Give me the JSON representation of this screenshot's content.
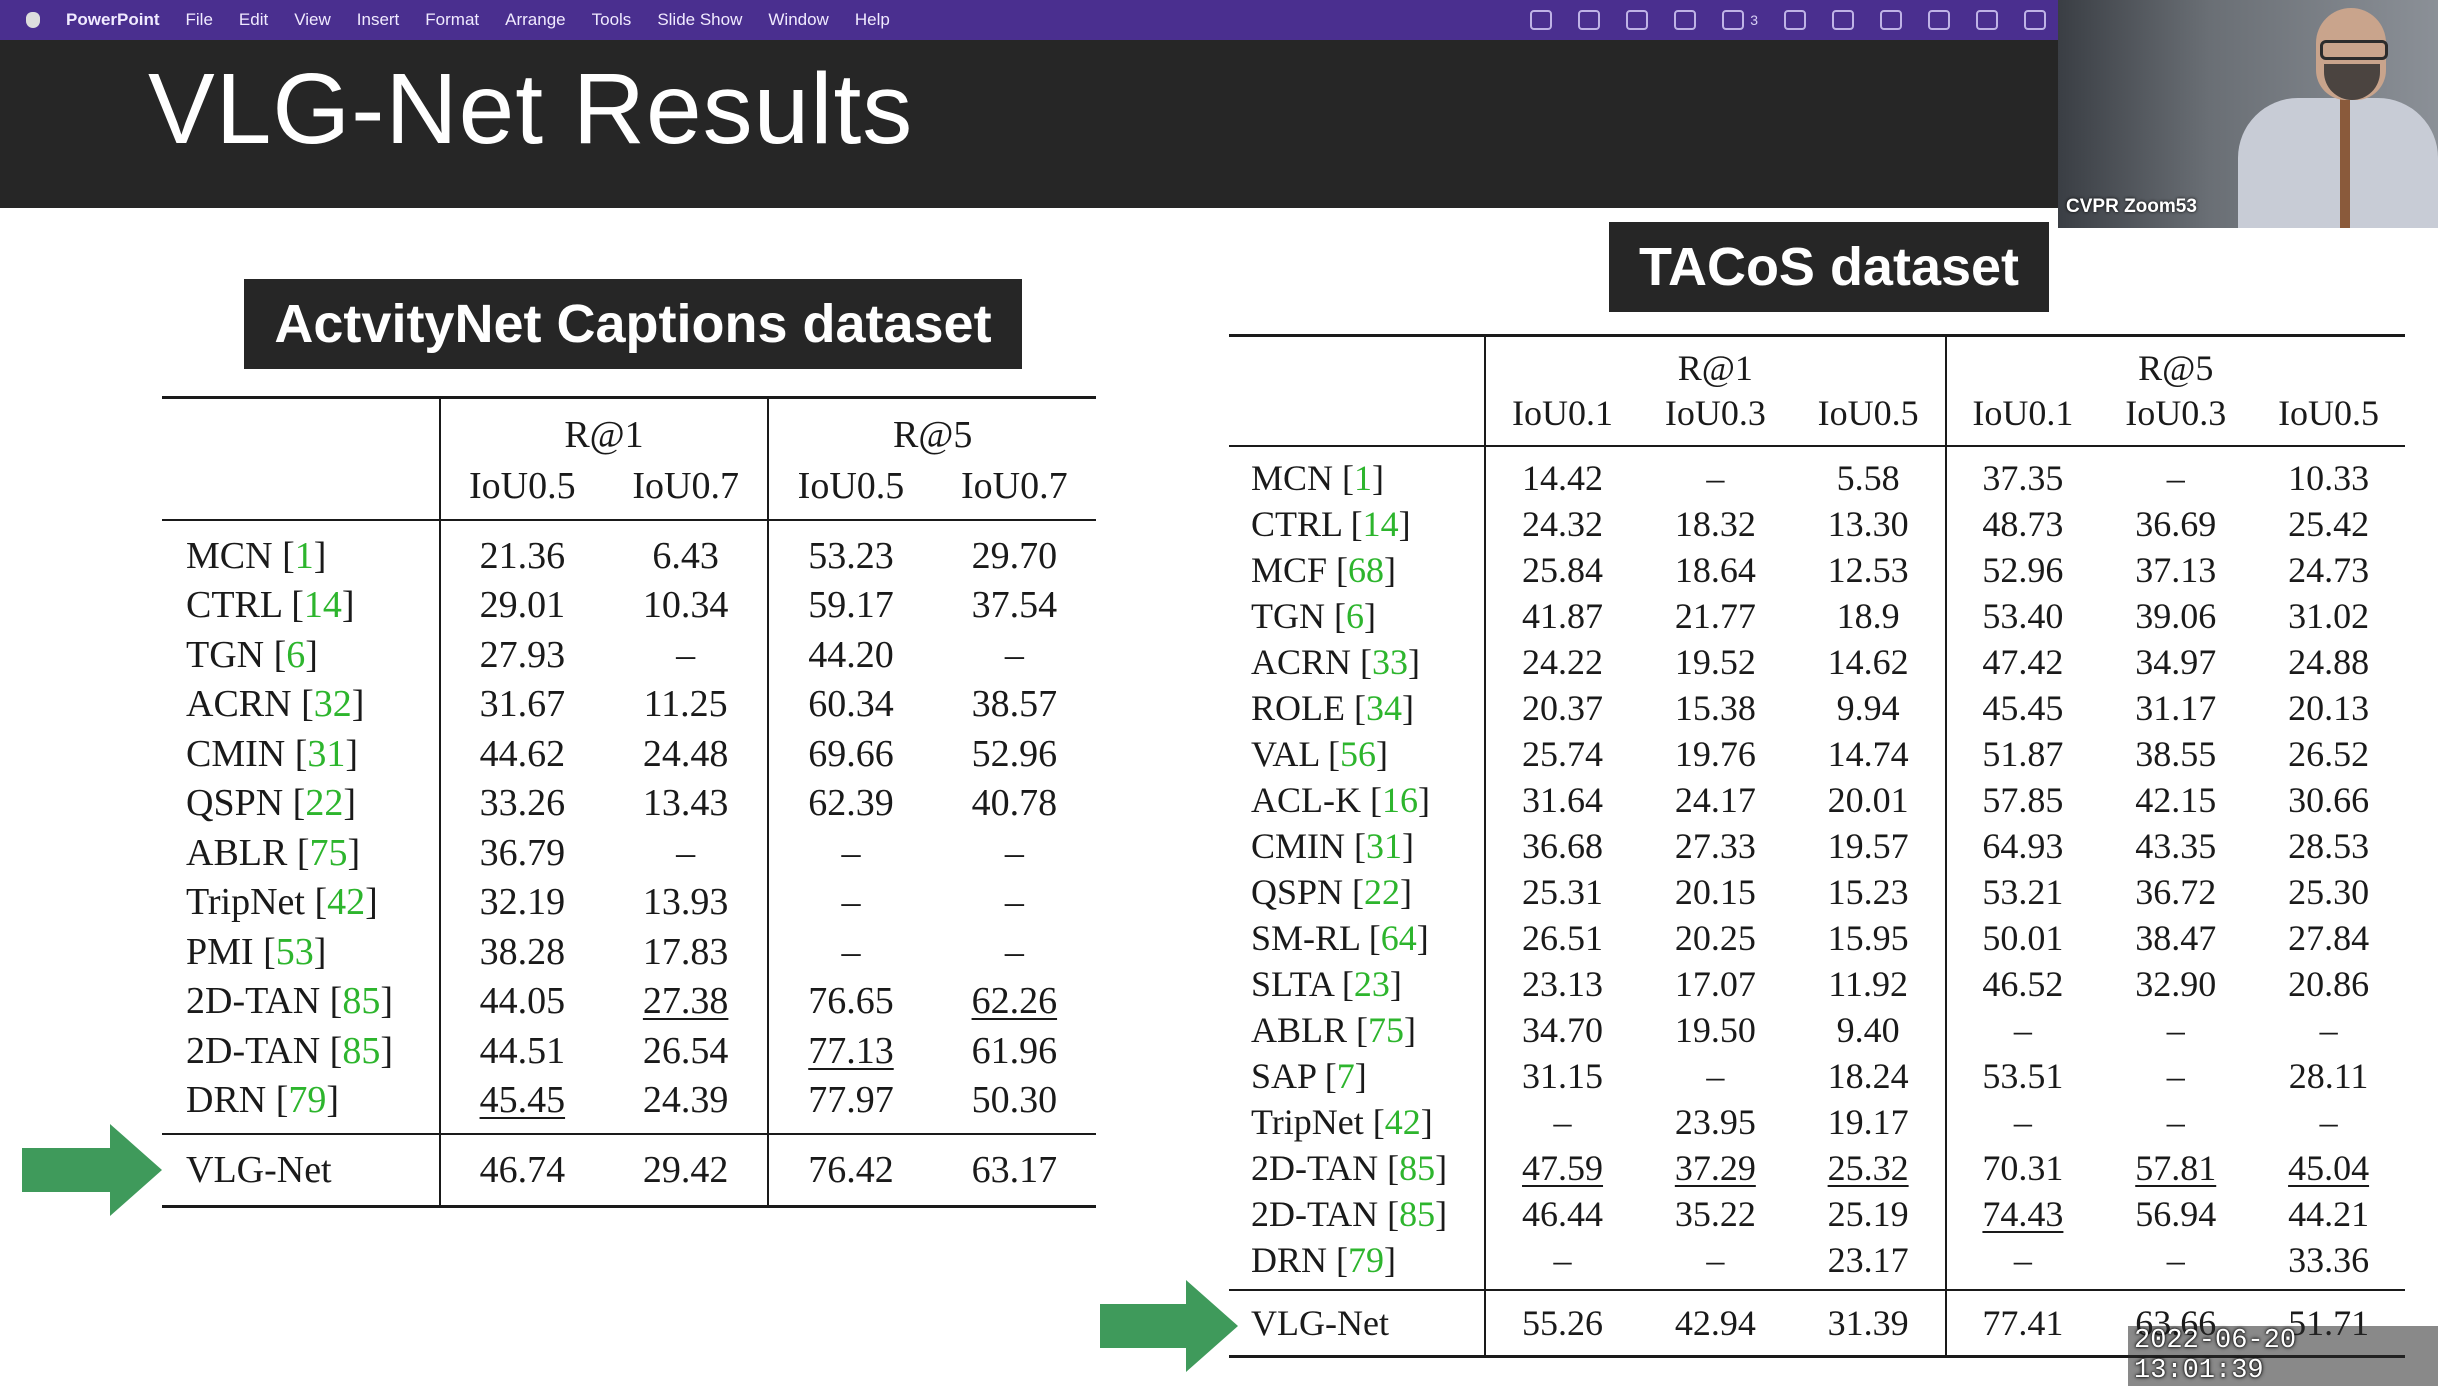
{
  "menubar": {
    "app": "PowerPoint",
    "items": [
      "File",
      "Edit",
      "View",
      "Insert",
      "Format",
      "Arrange",
      "Tools",
      "Slide Show",
      "Window",
      "Help"
    ],
    "status_icons": [
      "creative-cloud-icon",
      "cloud-icon",
      "box-icon",
      "window-icon",
      "wechat-icon",
      "shield-icon",
      "search-icon",
      "display-icon",
      "bluetooth-icon",
      "battery-icon",
      "screen-share-icon"
    ],
    "wechat_count": "3"
  },
  "slide": {
    "title": "VLG-Net Results",
    "anet_badge": "ActvityNet Captions dataset",
    "tacos_badge": "TACoS dataset"
  },
  "video": {
    "label": "CVPR Zoom53"
  },
  "timestamp": "2022-06-20 13:01:39",
  "colors": {
    "menubar": "#4a2f8f",
    "title_bar": "#262626",
    "citation": "#2db52d",
    "arrow": "#3f9a5b"
  },
  "anet_table": {
    "groups": [
      "R@1",
      "R@5"
    ],
    "subheaders": [
      "IoU0.5",
      "IoU0.7",
      "IoU0.5",
      "IoU0.7"
    ],
    "rows": [
      {
        "method": "MCN ",
        "cite": "1",
        "v": [
          "21.36",
          "6.43",
          "53.23",
          "29.70"
        ]
      },
      {
        "method": "CTRL ",
        "cite": "14",
        "v": [
          "29.01",
          "10.34",
          "59.17",
          "37.54"
        ]
      },
      {
        "method": "TGN ",
        "cite": "6",
        "v": [
          "27.93",
          "–",
          "44.20",
          "–"
        ]
      },
      {
        "method": "ACRN ",
        "cite": "32",
        "v": [
          "31.67",
          "11.25",
          "60.34",
          "38.57"
        ]
      },
      {
        "method": "CMIN ",
        "cite": "31",
        "v": [
          "44.62",
          "24.48",
          "69.66",
          "52.96"
        ]
      },
      {
        "method": "QSPN ",
        "cite": "22",
        "v": [
          "33.26",
          "13.43",
          "62.39",
          "40.78"
        ]
      },
      {
        "method": "ABLR ",
        "cite": "75",
        "v": [
          "36.79",
          "–",
          "–",
          "–"
        ]
      },
      {
        "method": "TripNet ",
        "cite": "42",
        "v": [
          "32.19",
          "13.93",
          "–",
          "–"
        ]
      },
      {
        "method": "PMI ",
        "cite": "53",
        "v": [
          "38.28",
          "17.83",
          "–",
          "–"
        ]
      },
      {
        "method": "2D-TAN ",
        "cite": "85",
        "v": [
          "44.05",
          "27.38",
          "76.65",
          "62.26"
        ]
      },
      {
        "method": "2D-TAN ",
        "cite": "85",
        "v": [
          "44.51",
          "26.54",
          "77.13",
          "61.96"
        ]
      },
      {
        "method": "DRN ",
        "cite": "79",
        "v": [
          "45.45",
          "24.39",
          "77.97",
          "50.30"
        ]
      }
    ],
    "vlg": {
      "method": "VLG-Net",
      "v": [
        "46.74",
        "29.42",
        "76.42",
        "63.17"
      ]
    }
  },
  "tacos_table": {
    "groups": [
      "R@1",
      "R@5"
    ],
    "subheaders": [
      "IoU0.1",
      "IoU0.3",
      "IoU0.5",
      "IoU0.1",
      "IoU0.3",
      "IoU0.5"
    ],
    "rows": [
      {
        "method": "MCN ",
        "cite": "1",
        "v": [
          "14.42",
          "–",
          "5.58",
          "37.35",
          "–",
          "10.33"
        ]
      },
      {
        "method": "CTRL ",
        "cite": "14",
        "v": [
          "24.32",
          "18.32",
          "13.30",
          "48.73",
          "36.69",
          "25.42"
        ]
      },
      {
        "method": "MCF ",
        "cite": "68",
        "v": [
          "25.84",
          "18.64",
          "12.53",
          "52.96",
          "37.13",
          "24.73"
        ]
      },
      {
        "method": "TGN ",
        "cite": "6",
        "v": [
          "41.87",
          "21.77",
          "18.9",
          "53.40",
          "39.06",
          "31.02"
        ]
      },
      {
        "method": "ACRN ",
        "cite": "33",
        "v": [
          "24.22",
          "19.52",
          "14.62",
          "47.42",
          "34.97",
          "24.88"
        ]
      },
      {
        "method": "ROLE ",
        "cite": "34",
        "v": [
          "20.37",
          "15.38",
          "9.94",
          "45.45",
          "31.17",
          "20.13"
        ]
      },
      {
        "method": "VAL ",
        "cite": "56",
        "v": [
          "25.74",
          "19.76",
          "14.74",
          "51.87",
          "38.55",
          "26.52"
        ]
      },
      {
        "method": "ACL-K ",
        "cite": "16",
        "v": [
          "31.64",
          "24.17",
          "20.01",
          "57.85",
          "42.15",
          "30.66"
        ]
      },
      {
        "method": "CMIN ",
        "cite": "31",
        "v": [
          "36.68",
          "27.33",
          "19.57",
          "64.93",
          "43.35",
          "28.53"
        ]
      },
      {
        "method": "QSPN ",
        "cite": "22",
        "v": [
          "25.31",
          "20.15",
          "15.23",
          "53.21",
          "36.72",
          "25.30"
        ]
      },
      {
        "method": "SM-RL ",
        "cite": "64",
        "v": [
          "26.51",
          "20.25",
          "15.95",
          "50.01",
          "38.47",
          "27.84"
        ]
      },
      {
        "method": "SLTA ",
        "cite": "23",
        "v": [
          "23.13",
          "17.07",
          "11.92",
          "46.52",
          "32.90",
          "20.86"
        ]
      },
      {
        "method": "ABLR ",
        "cite": "75",
        "v": [
          "34.70",
          "19.50",
          "9.40",
          "–",
          "–",
          "–"
        ]
      },
      {
        "method": "SAP ",
        "cite": "7",
        "v": [
          "31.15",
          "–",
          "18.24",
          "53.51",
          "–",
          "28.11"
        ]
      },
      {
        "method": "TripNet ",
        "cite": "42",
        "v": [
          "–",
          "23.95",
          "19.17",
          "–",
          "–",
          "–"
        ]
      },
      {
        "method": "2D-TAN ",
        "cite": "85",
        "v": [
          "47.59",
          "37.29",
          "25.32",
          "70.31",
          "57.81",
          "45.04"
        ]
      },
      {
        "method": "2D-TAN ",
        "cite": "85",
        "v": [
          "46.44",
          "35.22",
          "25.19",
          "74.43",
          "56.94",
          "44.21"
        ]
      },
      {
        "method": "DRN ",
        "cite": "79",
        "v": [
          "–",
          "–",
          "23.17",
          "–",
          "–",
          "33.36"
        ]
      }
    ],
    "vlg": {
      "method": "VLG-Net",
      "v": [
        "55.26",
        "42.94",
        "31.39",
        "77.41",
        "63.66",
        "51.71"
      ]
    }
  }
}
